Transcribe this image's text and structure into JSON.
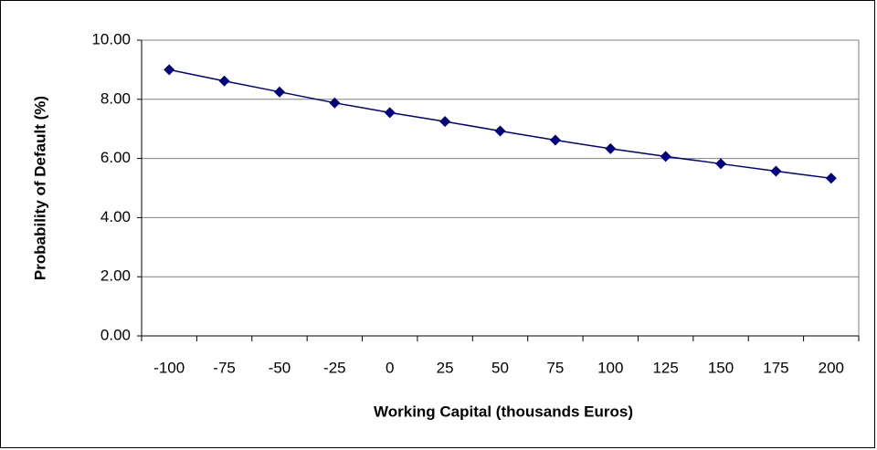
{
  "chart_data": {
    "type": "line",
    "x_label": "Working Capital (thousands Euros)",
    "y_label": "Probability of Default (%)",
    "categories": [
      "-100",
      "-75",
      "-50",
      "-25",
      "0",
      "25",
      "50",
      "75",
      "100",
      "125",
      "150",
      "175",
      "200"
    ],
    "values": [
      9.0,
      8.62,
      8.25,
      7.88,
      7.55,
      7.25,
      6.93,
      6.62,
      6.33,
      6.07,
      5.82,
      5.57,
      5.33
    ],
    "color": "#000080",
    "ylim": [
      0,
      10
    ],
    "yticks": [
      {
        "value": 0,
        "label": "0.00"
      },
      {
        "value": 2,
        "label": "2.00"
      },
      {
        "value": 4,
        "label": "4.00"
      },
      {
        "value": 6,
        "label": "6.00"
      },
      {
        "value": 8,
        "label": "8.00"
      },
      {
        "value": 10,
        "label": "10.00"
      }
    ],
    "grid": true
  }
}
